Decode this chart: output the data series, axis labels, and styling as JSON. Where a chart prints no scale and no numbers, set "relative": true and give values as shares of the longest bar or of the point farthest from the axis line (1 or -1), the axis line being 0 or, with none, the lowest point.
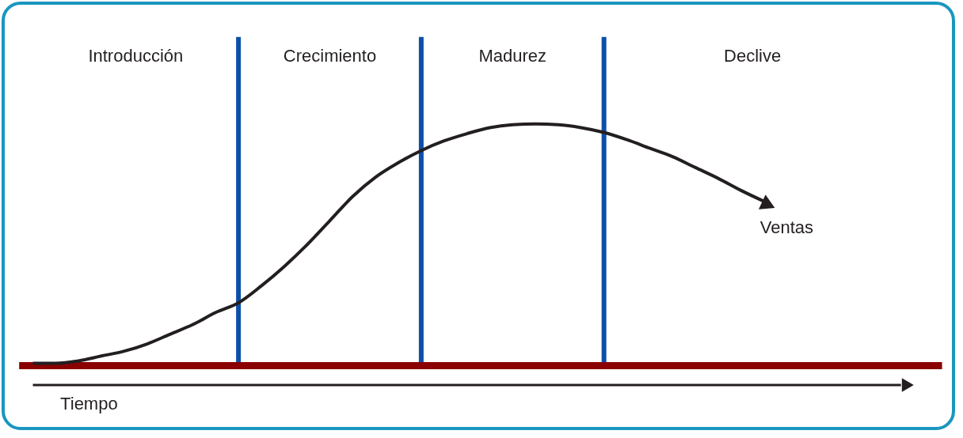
{
  "chart_data": {
    "type": "line",
    "relative": true,
    "xlabel": "Tiempo",
    "categories": [
      null,
      null,
      null,
      null,
      null,
      null,
      null,
      null,
      null,
      null,
      null,
      null,
      null,
      null,
      null,
      null,
      null,
      null,
      null,
      null,
      null,
      null,
      null,
      null,
      null,
      null,
      null,
      null,
      null,
      null,
      null,
      null,
      null
    ],
    "series": [
      {
        "name": "Ventas",
        "color": "#231f20",
        "values": [
          0.01,
          0.01,
          0.02,
          0.04,
          0.06,
          0.09,
          0.13,
          0.17,
          0.22,
          0.26,
          0.33,
          0.41,
          0.5,
          0.6,
          0.7,
          0.78,
          0.84,
          0.89,
          0.93,
          0.96,
          0.985,
          0.997,
          1.0,
          0.997,
          0.985,
          0.965,
          0.935,
          0.9,
          0.865,
          0.82,
          0.775,
          0.725,
          0.68
        ]
      }
    ],
    "annotations": [
      "Introducción",
      "Crecimiento",
      "Madurez",
      "Declive"
    ],
    "grid": "x",
    "ref_lines": [
      {
        "axis": "y",
        "value": 0,
        "color": "#8b0000"
      }
    ]
  }
}
